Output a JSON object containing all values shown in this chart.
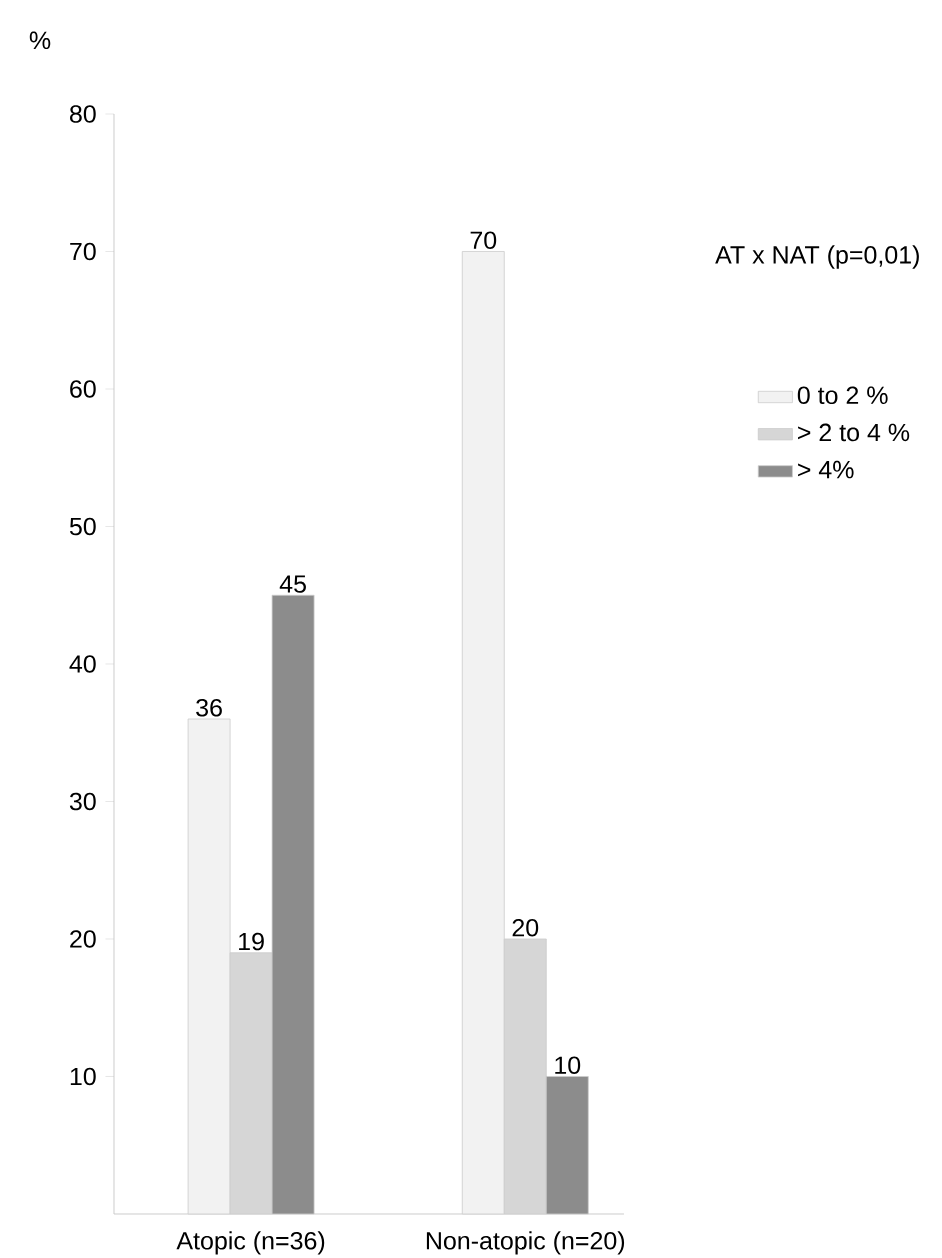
{
  "chart_data": {
    "type": "bar",
    "ylabel": "%",
    "categories": [
      "Atopic (n=36)",
      "Non-atopic (n=20)"
    ],
    "series": [
      {
        "name": "0 to 2 %",
        "color": "#f2f2f2",
        "values": [
          36,
          70
        ]
      },
      {
        "name": "> 2 to 4 %",
        "color": "#d6d6d6",
        "values": [
          19,
          20
        ]
      },
      {
        "name": "> 4%",
        "color": "#8c8c8c",
        "values": [
          45,
          10
        ]
      }
    ],
    "ylim": [
      0,
      80
    ],
    "yticks": [
      10,
      20,
      30,
      40,
      50,
      60,
      70,
      80
    ],
    "annotations": [
      "AT x NAT (p=0,01)"
    ],
    "data_labels": true,
    "legend": "right",
    "grid": false
  }
}
